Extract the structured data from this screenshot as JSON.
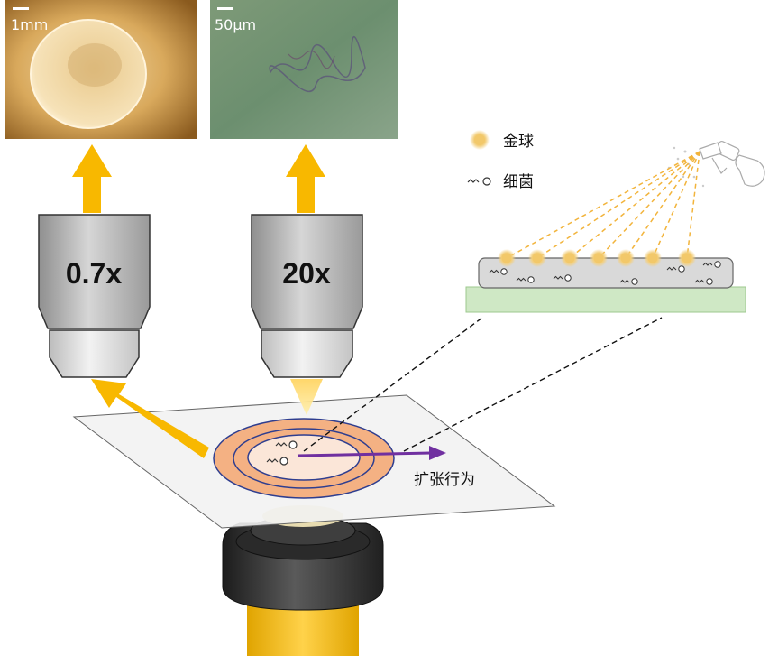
{
  "micrographs": {
    "left_scale": "1mm",
    "right_scale": "50μm"
  },
  "objectives": {
    "left_mag": "0.7x",
    "right_mag": "20x"
  },
  "legend": {
    "gold_label": "金球",
    "bacteria_label": "细菌"
  },
  "annotation": {
    "expansion_label": "扩张行为"
  },
  "colors": {
    "arrow_yellow": "#F8B800",
    "purple_arrow": "#7030A0",
    "gold_dot": "#F2C86A",
    "ring_orange": "#F4B183",
    "ring_blue": "#2F3E8F",
    "agar_green": "#CFE8C5"
  }
}
